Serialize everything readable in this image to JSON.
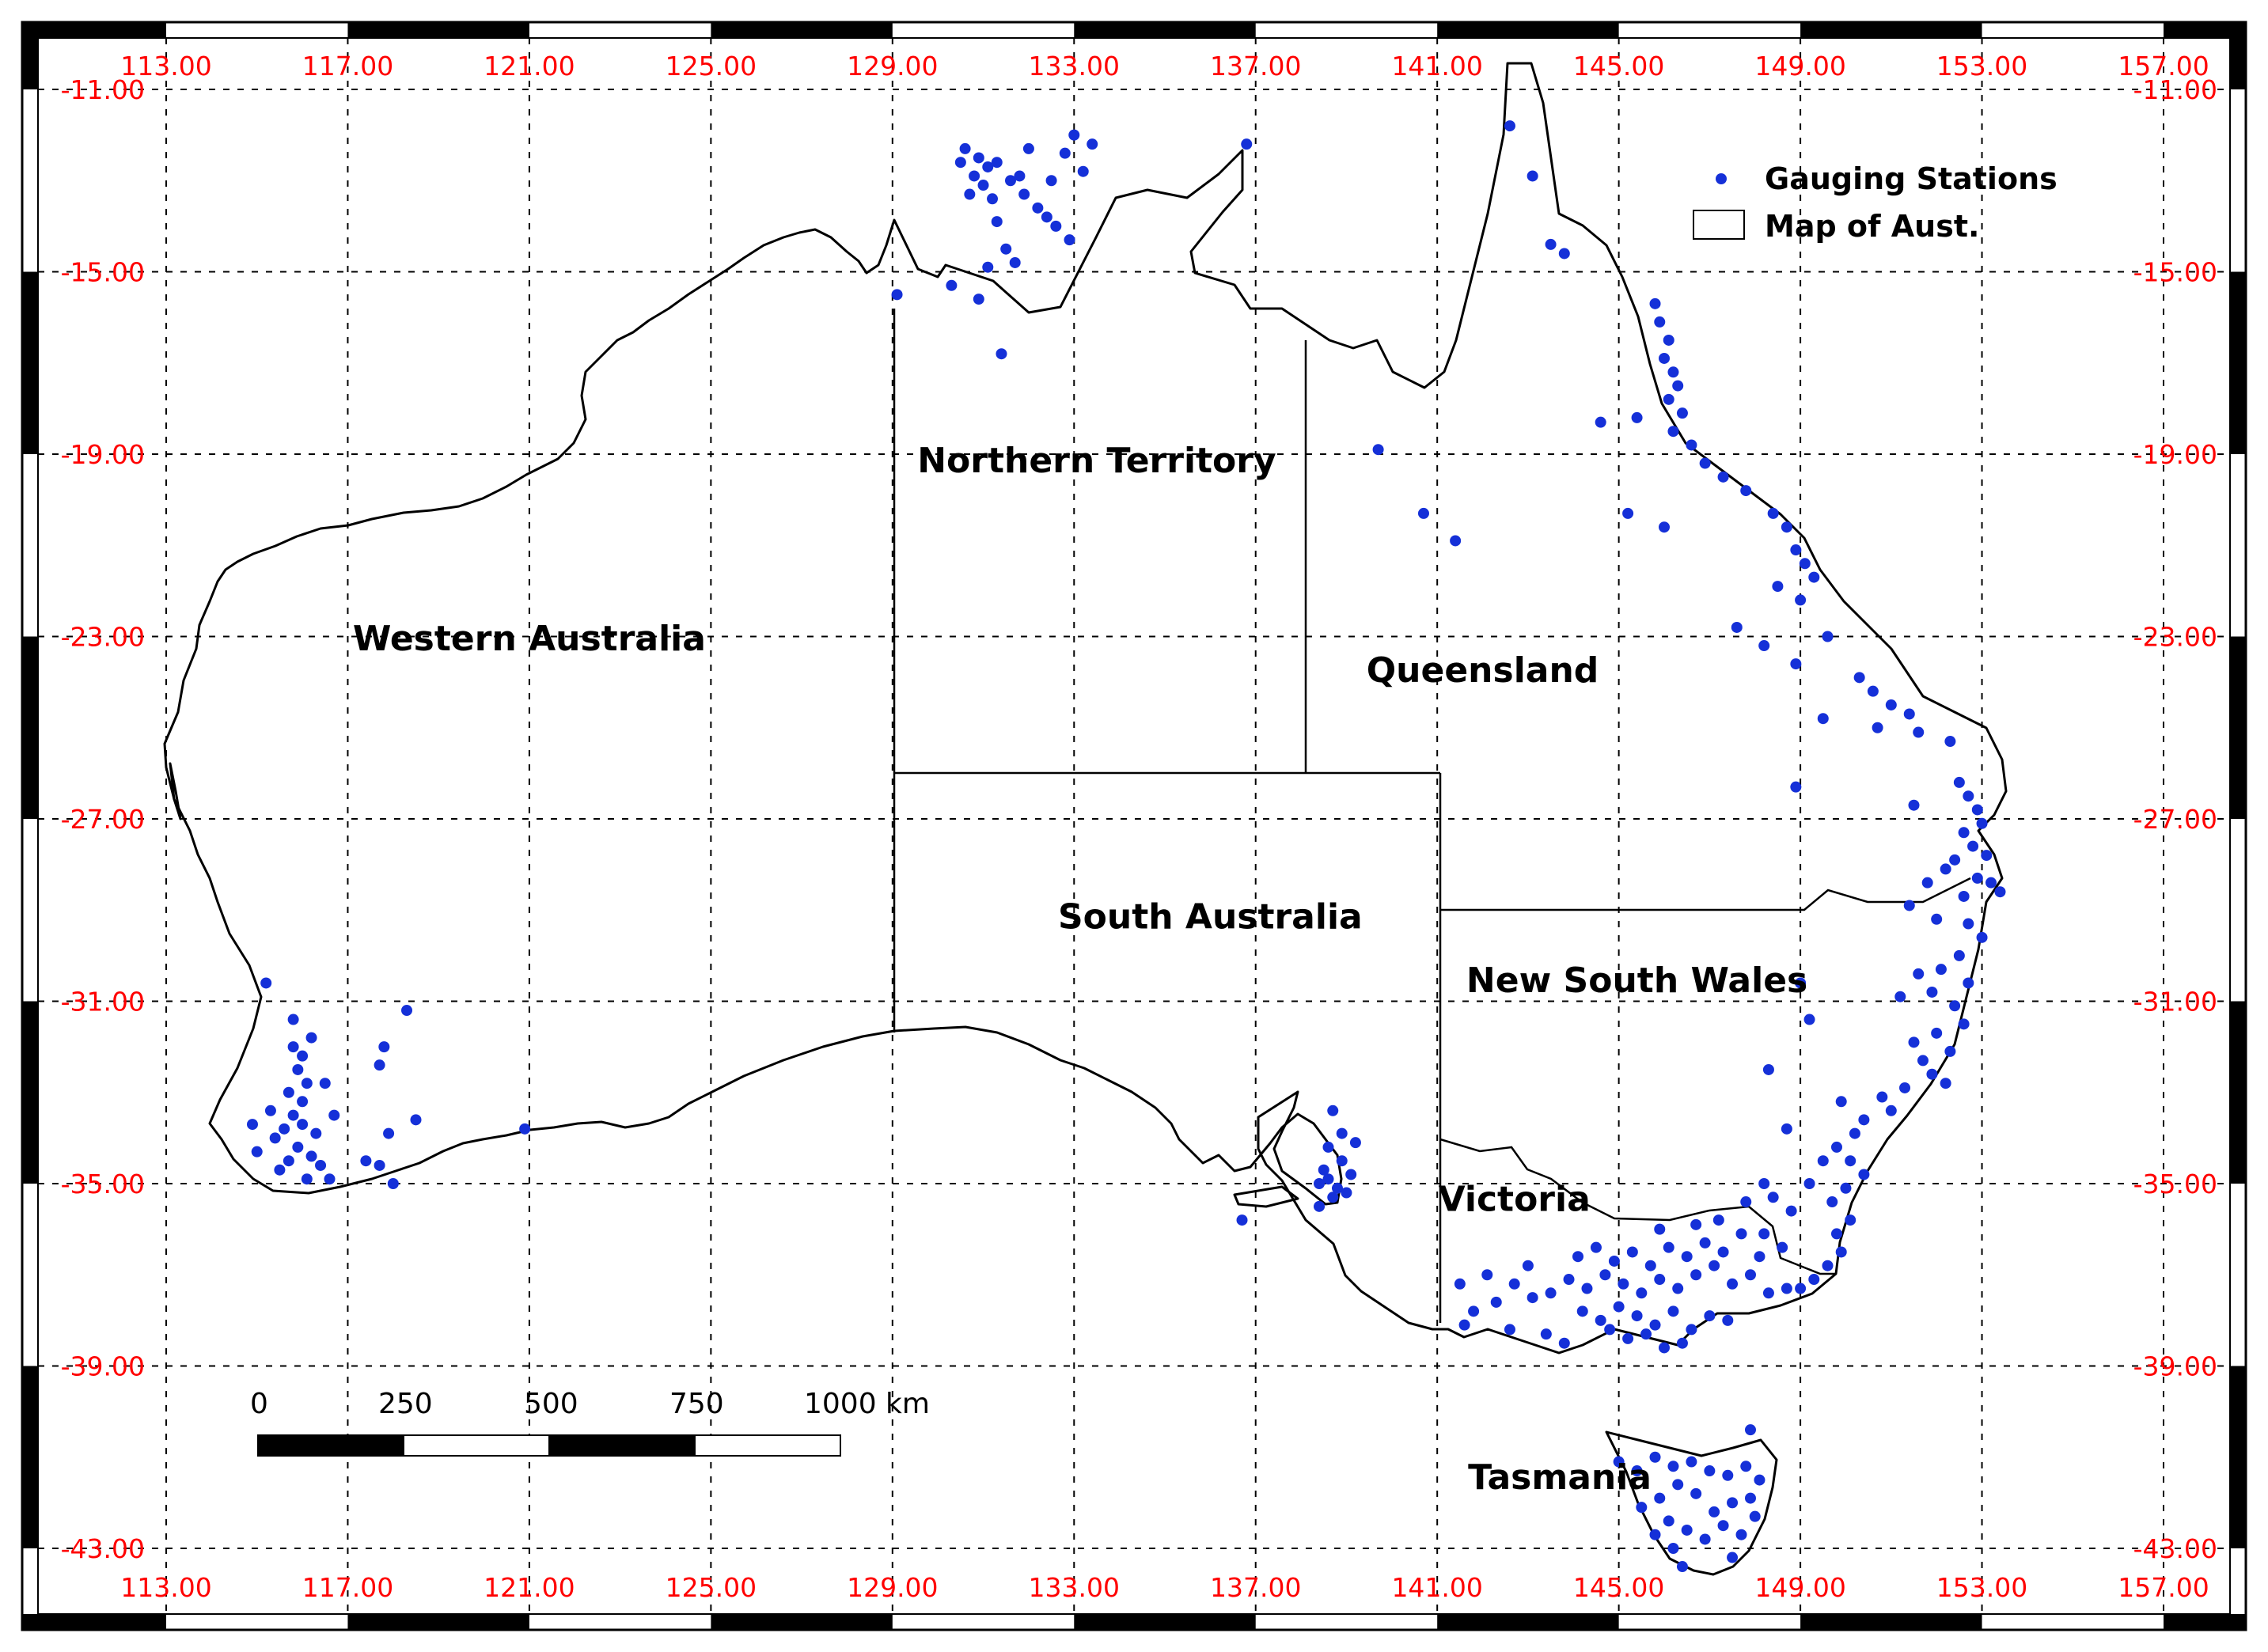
{
  "map": {
    "lon_ticks": [
      "113.00",
      "117.00",
      "121.00",
      "125.00",
      "129.00",
      "133.00",
      "137.00",
      "141.00",
      "145.00",
      "149.00",
      "153.00",
      "157.00"
    ],
    "lat_ticks": [
      "-11.00",
      "-15.00",
      "-19.00",
      "-23.00",
      "-27.00",
      "-31.00",
      "-35.00",
      "-39.00",
      "-43.00"
    ],
    "lon_values": [
      113,
      117,
      121,
      125,
      129,
      133,
      137,
      141,
      145,
      149,
      153,
      157
    ],
    "lat_values": [
      -11,
      -15,
      -19,
      -23,
      -27,
      -31,
      -35,
      -39,
      -43
    ],
    "colors": {
      "tick": "#ff0000",
      "station": "#1530d8",
      "outline": "#000000",
      "grid": "#000000"
    }
  },
  "states": [
    {
      "key": "nt",
      "label": "Northern Territory",
      "lon": 133.5,
      "lat": -19.4
    },
    {
      "key": "wa",
      "label": "Western Australia",
      "lon": 121.0,
      "lat": -23.3
    },
    {
      "key": "qld",
      "label": "Queensland",
      "lon": 142.0,
      "lat": -24.0
    },
    {
      "key": "sa",
      "label": "South Australia",
      "lon": 136.0,
      "lat": -29.4
    },
    {
      "key": "nsw",
      "label": "New South Wales",
      "lon": 145.4,
      "lat": -30.8
    },
    {
      "key": "vic",
      "label": "Victoria",
      "lon": 142.7,
      "lat": -35.6
    },
    {
      "key": "tas",
      "label": "Tasmania",
      "lon": 143.7,
      "lat": -41.7
    }
  ],
  "legend": {
    "stations_label": "Gauging Stations",
    "map_label": "Map of Aust."
  },
  "scalebar": {
    "labels": [
      "0",
      "250",
      "500",
      "750",
      "1000 km"
    ]
  },
  "stations": [
    [
      130.6,
      -12.3
    ],
    [
      130.9,
      -12.5
    ],
    [
      131.1,
      -12.7
    ],
    [
      131.3,
      -12.6
    ],
    [
      130.8,
      -12.9
    ],
    [
      131.0,
      -13.1
    ],
    [
      130.7,
      -13.3
    ],
    [
      131.2,
      -13.4
    ],
    [
      131.6,
      -13.0
    ],
    [
      131.9,
      -13.3
    ],
    [
      132.2,
      -13.6
    ],
    [
      132.4,
      -13.8
    ],
    [
      132.6,
      -14.0
    ],
    [
      132.9,
      -14.3
    ],
    [
      131.5,
      -14.5
    ],
    [
      131.1,
      -14.9
    ],
    [
      130.3,
      -15.3
    ],
    [
      129.1,
      -15.5
    ],
    [
      130.9,
      -15.6
    ],
    [
      131.7,
      -14.8
    ],
    [
      132.8,
      -12.4
    ],
    [
      133.2,
      -12.8
    ],
    [
      133.4,
      -12.2
    ],
    [
      133.0,
      -12.0
    ],
    [
      131.3,
      -13.9
    ],
    [
      132.0,
      -12.3
    ],
    [
      131.4,
      -16.8
    ],
    [
      130.5,
      -12.6
    ],
    [
      131.8,
      -12.9
    ],
    [
      132.5,
      -13.0
    ],
    [
      136.8,
      -12.2
    ],
    [
      142.6,
      -11.8
    ],
    [
      143.1,
      -12.9
    ],
    [
      143.5,
      -14.4
    ],
    [
      143.8,
      -14.6
    ],
    [
      139.7,
      -18.9
    ],
    [
      140.7,
      -20.3
    ],
    [
      141.4,
      -20.9
    ],
    [
      144.6,
      -18.3
    ],
    [
      145.4,
      -18.2
    ],
    [
      145.2,
      -20.3
    ],
    [
      146.0,
      -20.6
    ],
    [
      145.8,
      -15.7
    ],
    [
      145.9,
      -16.1
    ],
    [
      146.1,
      -16.5
    ],
    [
      146.0,
      -16.9
    ],
    [
      146.2,
      -17.2
    ],
    [
      146.3,
      -17.5
    ],
    [
      146.1,
      -17.8
    ],
    [
      146.4,
      -18.1
    ],
    [
      146.2,
      -18.5
    ],
    [
      146.6,
      -18.8
    ],
    [
      146.9,
      -19.2
    ],
    [
      147.3,
      -19.5
    ],
    [
      147.8,
      -19.8
    ],
    [
      148.4,
      -20.3
    ],
    [
      148.7,
      -20.6
    ],
    [
      148.9,
      -21.1
    ],
    [
      149.1,
      -21.4
    ],
    [
      149.3,
      -21.7
    ],
    [
      148.5,
      -21.9
    ],
    [
      149.0,
      -22.2
    ],
    [
      147.6,
      -22.8
    ],
    [
      148.2,
      -23.2
    ],
    [
      148.9,
      -23.6
    ],
    [
      149.6,
      -23.0
    ],
    [
      150.3,
      -23.9
    ],
    [
      150.6,
      -24.2
    ],
    [
      151.0,
      -24.5
    ],
    [
      151.4,
      -24.7
    ],
    [
      150.7,
      -25.0
    ],
    [
      151.6,
      -25.1
    ],
    [
      152.3,
      -25.3
    ],
    [
      152.5,
      -26.2
    ],
    [
      152.7,
      -26.5
    ],
    [
      152.9,
      -26.8
    ],
    [
      153.0,
      -27.1
    ],
    [
      152.6,
      -27.3
    ],
    [
      152.8,
      -27.6
    ],
    [
      153.1,
      -27.8
    ],
    [
      152.4,
      -27.9
    ],
    [
      152.2,
      -28.1
    ],
    [
      152.9,
      -28.3
    ],
    [
      153.2,
      -28.4
    ],
    [
      153.4,
      -28.6
    ],
    [
      152.6,
      -28.7
    ],
    [
      151.8,
      -28.4
    ],
    [
      151.4,
      -28.9
    ],
    [
      152.0,
      -29.2
    ],
    [
      152.7,
      -29.3
    ],
    [
      153.0,
      -29.6
    ],
    [
      152.5,
      -30.0
    ],
    [
      152.1,
      -30.3
    ],
    [
      151.6,
      -30.4
    ],
    [
      152.7,
      -30.6
    ],
    [
      151.9,
      -30.8
    ],
    [
      151.2,
      -30.9
    ],
    [
      152.4,
      -31.1
    ],
    [
      152.6,
      -31.5
    ],
    [
      152.0,
      -31.7
    ],
    [
      151.5,
      -31.9
    ],
    [
      152.3,
      -32.1
    ],
    [
      151.7,
      -32.3
    ],
    [
      151.9,
      -32.6
    ],
    [
      152.2,
      -32.8
    ],
    [
      151.3,
      -32.9
    ],
    [
      150.8,
      -33.1
    ],
    [
      151.0,
      -33.4
    ],
    [
      150.4,
      -33.6
    ],
    [
      150.2,
      -33.9
    ],
    [
      149.8,
      -34.2
    ],
    [
      150.1,
      -34.5
    ],
    [
      150.4,
      -34.8
    ],
    [
      150.0,
      -35.1
    ],
    [
      149.7,
      -35.4
    ],
    [
      150.1,
      -35.8
    ],
    [
      149.8,
      -36.1
    ],
    [
      149.9,
      -36.5
    ],
    [
      149.6,
      -36.8
    ],
    [
      149.3,
      -37.1
    ],
    [
      149.0,
      -37.3
    ],
    [
      148.6,
      -36.4
    ],
    [
      148.2,
      -36.1
    ],
    [
      148.8,
      -35.6
    ],
    [
      148.4,
      -35.3
    ],
    [
      149.2,
      -35.0
    ],
    [
      149.5,
      -34.5
    ],
    [
      149.9,
      -33.2
    ],
    [
      149.2,
      -31.4
    ],
    [
      148.7,
      -33.8
    ],
    [
      148.3,
      -32.5
    ],
    [
      149.0,
      -30.6
    ],
    [
      151.5,
      -26.7
    ],
    [
      148.9,
      -26.3
    ],
    [
      149.5,
      -24.8
    ],
    [
      141.5,
      -37.2
    ],
    [
      141.8,
      -37.8
    ],
    [
      142.3,
      -37.6
    ],
    [
      142.7,
      -37.2
    ],
    [
      143.1,
      -37.5
    ],
    [
      143.5,
      -37.4
    ],
    [
      143.9,
      -37.1
    ],
    [
      144.3,
      -37.3
    ],
    [
      144.7,
      -37.0
    ],
    [
      145.1,
      -37.2
    ],
    [
      145.5,
      -37.4
    ],
    [
      145.9,
      -37.1
    ],
    [
      146.3,
      -37.3
    ],
    [
      146.7,
      -37.0
    ],
    [
      147.1,
      -36.8
    ],
    [
      147.5,
      -37.2
    ],
    [
      147.9,
      -37.0
    ],
    [
      148.3,
      -37.4
    ],
    [
      148.7,
      -37.3
    ],
    [
      144.2,
      -37.8
    ],
    [
      144.6,
      -38.0
    ],
    [
      145.0,
      -37.7
    ],
    [
      145.4,
      -37.9
    ],
    [
      145.8,
      -38.1
    ],
    [
      146.2,
      -37.8
    ],
    [
      146.6,
      -38.2
    ],
    [
      147.0,
      -37.9
    ],
    [
      147.4,
      -38.0
    ],
    [
      143.4,
      -38.3
    ],
    [
      143.8,
      -38.5
    ],
    [
      142.6,
      -38.2
    ],
    [
      144.1,
      -36.6
    ],
    [
      144.5,
      -36.4
    ],
    [
      144.9,
      -36.7
    ],
    [
      145.3,
      -36.5
    ],
    [
      145.7,
      -36.8
    ],
    [
      146.1,
      -36.4
    ],
    [
      146.5,
      -36.6
    ],
    [
      146.9,
      -36.3
    ],
    [
      147.3,
      -36.5
    ],
    [
      147.7,
      -36.1
    ],
    [
      148.1,
      -36.6
    ],
    [
      145.6,
      -38.3
    ],
    [
      145.2,
      -38.4
    ],
    [
      144.8,
      -38.2
    ],
    [
      146.4,
      -38.5
    ],
    [
      146.0,
      -38.6
    ],
    [
      147.2,
      -35.8
    ],
    [
      146.7,
      -35.9
    ],
    [
      145.9,
      -36.0
    ],
    [
      142.1,
      -37.0
    ],
    [
      143.0,
      -36.8
    ],
    [
      141.6,
      -38.1
    ],
    [
      147.8,
      -35.4
    ],
    [
      148.2,
      -35.0
    ],
    [
      145.0,
      -41.1
    ],
    [
      145.4,
      -41.3
    ],
    [
      145.8,
      -41.0
    ],
    [
      146.2,
      -41.2
    ],
    [
      146.6,
      -41.1
    ],
    [
      147.0,
      -41.3
    ],
    [
      147.4,
      -41.4
    ],
    [
      147.8,
      -41.2
    ],
    [
      148.1,
      -41.5
    ],
    [
      147.9,
      -41.9
    ],
    [
      147.5,
      -42.0
    ],
    [
      147.1,
      -42.2
    ],
    [
      146.7,
      -41.8
    ],
    [
      146.3,
      -41.6
    ],
    [
      145.9,
      -41.9
    ],
    [
      145.5,
      -42.1
    ],
    [
      146.1,
      -42.4
    ],
    [
      146.5,
      -42.6
    ],
    [
      146.9,
      -42.8
    ],
    [
      147.3,
      -42.5
    ],
    [
      147.7,
      -42.7
    ],
    [
      146.2,
      -43.0
    ],
    [
      145.8,
      -42.7
    ],
    [
      147.5,
      -43.2
    ],
    [
      148.0,
      -42.3
    ],
    [
      147.9,
      -40.4
    ],
    [
      146.4,
      -43.4
    ],
    [
      138.5,
      -34.7
    ],
    [
      138.6,
      -34.9
    ],
    [
      138.8,
      -35.1
    ],
    [
      138.7,
      -35.3
    ],
    [
      138.9,
      -34.5
    ],
    [
      139.1,
      -34.8
    ],
    [
      139.0,
      -35.2
    ],
    [
      138.6,
      -34.2
    ],
    [
      138.9,
      -33.9
    ],
    [
      139.2,
      -34.1
    ],
    [
      138.4,
      -35.5
    ],
    [
      138.7,
      -33.4
    ],
    [
      136.7,
      -35.8
    ],
    [
      138.4,
      -35.0
    ],
    [
      115.2,
      -30.6
    ],
    [
      115.8,
      -32.0
    ],
    [
      116.0,
      -32.2
    ],
    [
      115.9,
      -32.5
    ],
    [
      116.1,
      -32.8
    ],
    [
      115.7,
      -33.0
    ],
    [
      116.0,
      -33.2
    ],
    [
      115.8,
      -33.5
    ],
    [
      115.6,
      -33.8
    ],
    [
      116.0,
      -33.7
    ],
    [
      116.3,
      -33.9
    ],
    [
      115.4,
      -34.0
    ],
    [
      115.9,
      -34.2
    ],
    [
      116.2,
      -34.4
    ],
    [
      115.7,
      -34.5
    ],
    [
      116.4,
      -34.6
    ],
    [
      116.6,
      -34.9
    ],
    [
      116.1,
      -34.9
    ],
    [
      115.5,
      -34.7
    ],
    [
      115.0,
      -34.3
    ],
    [
      114.9,
      -33.7
    ],
    [
      115.3,
      -33.4
    ],
    [
      116.5,
      -32.8
    ],
    [
      116.7,
      -33.5
    ],
    [
      117.4,
      -34.5
    ],
    [
      117.7,
      -34.6
    ],
    [
      118.0,
      -35.0
    ],
    [
      117.9,
      -33.9
    ],
    [
      117.7,
      -32.4
    ],
    [
      117.8,
      -32.0
    ],
    [
      118.3,
      -31.2
    ],
    [
      118.5,
      -33.6
    ],
    [
      120.9,
      -33.8
    ],
    [
      115.8,
      -31.4
    ],
    [
      116.2,
      -31.8
    ]
  ]
}
